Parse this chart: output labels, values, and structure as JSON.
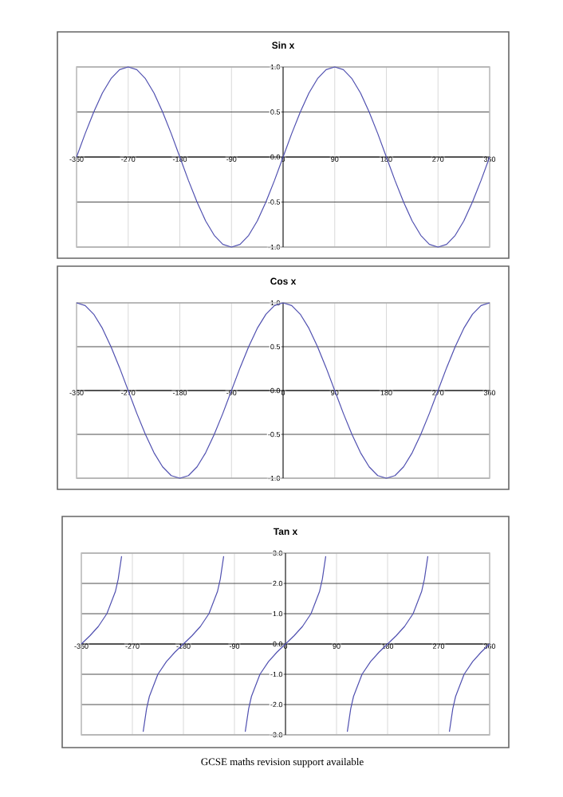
{
  "chart_data": [
    {
      "type": "line",
      "title": "Sin x",
      "color": "#5050b0",
      "grid": true,
      "xlim": [
        -360,
        360
      ],
      "ylim": [
        -1,
        1
      ],
      "xticks": [
        -360,
        -270,
        -180,
        -90,
        0,
        90,
        180,
        270,
        360
      ],
      "yticks": [
        {
          "value": -1,
          "label": "-1.0"
        },
        {
          "value": -0.5,
          "label": "-0.5"
        },
        {
          "value": 0,
          "label": "0.0"
        },
        {
          "value": 0.5,
          "label": "0.5"
        },
        {
          "value": 1,
          "label": "1.0"
        }
      ],
      "x": [
        -360,
        -345,
        -330,
        -315,
        -300,
        -285,
        -270,
        -255,
        -240,
        -225,
        -210,
        -195,
        -180,
        -165,
        -150,
        -135,
        -120,
        -105,
        -90,
        -75,
        -60,
        -45,
        -30,
        -15,
        0,
        15,
        30,
        45,
        60,
        75,
        90,
        105,
        120,
        135,
        150,
        165,
        180,
        195,
        210,
        225,
        240,
        255,
        270,
        285,
        300,
        315,
        330,
        345,
        360
      ],
      "values": [
        0,
        0.26,
        0.5,
        0.71,
        0.87,
        0.97,
        1,
        0.97,
        0.87,
        0.71,
        0.5,
        0.26,
        0,
        -0.26,
        -0.5,
        -0.71,
        -0.87,
        -0.97,
        -1,
        -0.97,
        -0.87,
        -0.71,
        -0.5,
        -0.26,
        0,
        0.26,
        0.5,
        0.71,
        0.87,
        0.97,
        1,
        0.97,
        0.87,
        0.71,
        0.5,
        0.26,
        0,
        -0.26,
        -0.5,
        -0.71,
        -0.87,
        -0.97,
        -1,
        -0.97,
        -0.87,
        -0.71,
        -0.5,
        -0.26,
        0
      ]
    },
    {
      "type": "line",
      "title": "Cos x",
      "color": "#5050b0",
      "grid": true,
      "xlim": [
        -360,
        360
      ],
      "ylim": [
        -1,
        1
      ],
      "xticks": [
        -360,
        -270,
        -180,
        -90,
        0,
        90,
        180,
        270,
        360
      ],
      "yticks": [
        {
          "value": -1,
          "label": "-1.0"
        },
        {
          "value": -0.5,
          "label": "-0.5"
        },
        {
          "value": 0,
          "label": "0.0"
        },
        {
          "value": 0.5,
          "label": "0.5"
        },
        {
          "value": 1,
          "label": "1.0"
        }
      ],
      "x": [
        -360,
        -345,
        -330,
        -315,
        -300,
        -285,
        -270,
        -255,
        -240,
        -225,
        -210,
        -195,
        -180,
        -165,
        -150,
        -135,
        -120,
        -105,
        -90,
        -75,
        -60,
        -45,
        -30,
        -15,
        0,
        15,
        30,
        45,
        60,
        75,
        90,
        105,
        120,
        135,
        150,
        165,
        180,
        195,
        210,
        225,
        240,
        255,
        270,
        285,
        300,
        315,
        330,
        345,
        360
      ],
      "values": [
        1,
        0.97,
        0.87,
        0.71,
        0.5,
        0.26,
        0,
        -0.26,
        -0.5,
        -0.71,
        -0.87,
        -0.97,
        -1,
        -0.97,
        -0.87,
        -0.71,
        -0.5,
        -0.26,
        0,
        0.26,
        0.5,
        0.71,
        0.87,
        0.97,
        1,
        0.97,
        0.87,
        0.71,
        0.5,
        0.26,
        0,
        -0.26,
        -0.5,
        -0.71,
        -0.87,
        -0.97,
        -1,
        -0.97,
        -0.87,
        -0.71,
        -0.5,
        -0.26,
        0,
        0.26,
        0.5,
        0.71,
        0.87,
        0.97,
        1
      ]
    },
    {
      "type": "line",
      "title": "Tan x",
      "color": "#5050b0",
      "grid": true,
      "xlim": [
        -360,
        360
      ],
      "ylim": [
        -3,
        3
      ],
      "xticks": [
        -360,
        -270,
        -180,
        -90,
        0,
        90,
        180,
        270,
        360
      ],
      "yticks": [
        {
          "value": -3,
          "label": "-3.0"
        },
        {
          "value": -2,
          "label": "-2.0"
        },
        {
          "value": -1,
          "label": "-1.0"
        },
        {
          "value": 0,
          "label": "0.0"
        },
        {
          "value": 1,
          "label": "1.0"
        },
        {
          "value": 2,
          "label": "2.0"
        },
        {
          "value": 3,
          "label": "3.0"
        }
      ],
      "x": [
        -360,
        -345,
        -330,
        -315,
        -300,
        -295,
        -289,
        -270,
        -251,
        -245,
        -240,
        -225,
        -210,
        -195,
        -180,
        -165,
        -150,
        -135,
        -120,
        -115,
        -109,
        -90,
        -71,
        -65,
        -60,
        -45,
        -30,
        -15,
        0,
        15,
        30,
        45,
        60,
        65,
        71,
        90,
        109,
        115,
        120,
        135,
        150,
        165,
        180,
        195,
        210,
        225,
        240,
        245,
        251,
        270,
        289,
        295,
        300,
        315,
        330,
        345,
        360
      ],
      "values": [
        0,
        0.27,
        0.58,
        1,
        1.73,
        2.14,
        2.9,
        null,
        -2.9,
        -2.14,
        -1.73,
        -1,
        -0.58,
        -0.27,
        0,
        0.27,
        0.58,
        1,
        1.73,
        2.14,
        2.9,
        null,
        -2.9,
        -2.14,
        -1.73,
        -1,
        -0.58,
        -0.27,
        0,
        0.27,
        0.58,
        1,
        1.73,
        2.14,
        2.9,
        null,
        -2.9,
        -2.14,
        -1.73,
        -1,
        -0.58,
        -0.27,
        0,
        0.27,
        0.58,
        1,
        1.73,
        2.14,
        2.9,
        null,
        -2.9,
        -2.14,
        -1.73,
        -1,
        -0.58,
        -0.27,
        0
      ],
      "annotations": [
        "GCSE maths revision support available"
      ]
    }
  ]
}
